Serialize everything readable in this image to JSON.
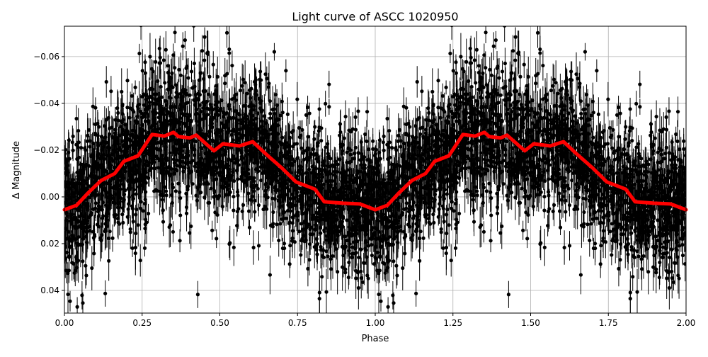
{
  "chart_data": {
    "type": "scatter",
    "title": "Light curve of ASCC 1020950",
    "xlabel": "Phase",
    "ylabel": "Δ Magnitude",
    "xlim": [
      0,
      2
    ],
    "ylim": [
      -0.073,
      0.0497
    ],
    "y_inverted": true,
    "grid": true,
    "xticks": [
      "0.00",
      "0.25",
      "0.50",
      "0.75",
      "1.00",
      "1.25",
      "1.50",
      "1.75",
      "2.00"
    ],
    "yticks": [
      "−0.06",
      "−0.04",
      "−0.02",
      "0.00",
      "0.02",
      "0.04"
    ],
    "ytick_values": [
      -0.06,
      -0.04,
      -0.02,
      0.0,
      0.02,
      0.04
    ],
    "xtick_values": [
      0,
      0.25,
      0.5,
      0.75,
      1.0,
      1.25,
      1.5,
      1.75,
      2.0
    ],
    "scatter": {
      "color": "#000000",
      "marker": "circle with vertical error bars",
      "approx_scatter_sigma": 0.014,
      "approx_error": 0.006
    },
    "binned_curve": {
      "color": "#ff0000",
      "period_repeated": true,
      "phase": [
        0.0,
        0.039,
        0.077,
        0.118,
        0.162,
        0.191,
        0.237,
        0.282,
        0.321,
        0.351,
        0.367,
        0.403,
        0.424,
        0.481,
        0.51,
        0.563,
        0.606,
        0.647,
        0.699,
        0.745,
        0.806,
        0.836,
        0.897,
        0.95,
        1.0
      ],
      "mag": [
        0.0055,
        0.0036,
        -0.0018,
        -0.007,
        -0.01,
        -0.0152,
        -0.0176,
        -0.0267,
        -0.026,
        -0.0276,
        -0.0258,
        -0.0252,
        -0.0264,
        -0.0197,
        -0.0227,
        -0.0218,
        -0.0236,
        -0.0185,
        -0.0124,
        -0.0064,
        -0.0033,
        0.0021,
        0.0027,
        0.003,
        0.0055
      ]
    }
  }
}
